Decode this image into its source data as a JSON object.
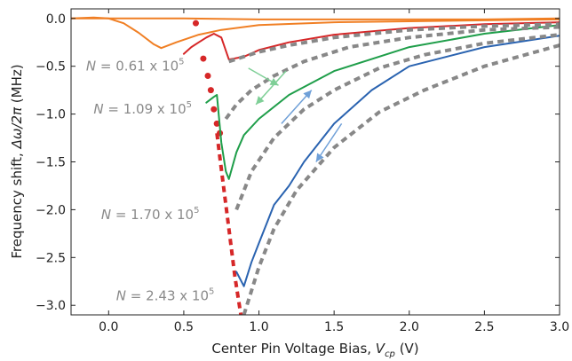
{
  "chart_data": {
    "type": "line",
    "title": "",
    "xlabel": "Center Pin Voltage Bias, V_cp (V)",
    "xlabel_parts": {
      "prefix": "Center Pin Voltage Bias, ",
      "symbol": "V",
      "subscript": "cp",
      "suffix": " (V)"
    },
    "ylabel": "Frequency shift, Δω/2π (MHz)",
    "ylabel_parts": {
      "prefix": "Frequency shift, ",
      "symbol": "Δω/2π",
      "suffix": " (MHz)"
    },
    "xlim": [
      -0.25,
      3.0
    ],
    "ylim": [
      -3.1,
      0.1
    ],
    "xticks": [
      0.0,
      0.5,
      1.0,
      1.5,
      2.0,
      2.5,
      3.0
    ],
    "xtick_labels": [
      "0.0",
      "0.5",
      "1.0",
      "1.5",
      "2.0",
      "2.5",
      "3.0"
    ],
    "yticks": [
      0.0,
      -0.5,
      -1.0,
      -1.5,
      -2.0,
      -2.5,
      -3.0
    ],
    "ytick_labels": [
      "0.0",
      "−0.5",
      "−1.0",
      "−1.5",
      "−2.0",
      "−2.5",
      "−3.0"
    ],
    "grid": false,
    "annotations": [
      {
        "symbol": "N",
        "text": " = 0.61 x 10",
        "exp": "5",
        "x": -0.15,
        "y": -0.5
      },
      {
        "symbol": "N",
        "text": " = 1.09 x 10",
        "exp": "5",
        "x": -0.1,
        "y": -0.95
      },
      {
        "symbol": "N",
        "text": " = 1.70 x 10",
        "exp": "5",
        "x": -0.05,
        "y": -2.05
      },
      {
        "symbol": "N",
        "text": " = 2.43 x 10",
        "exp": "5",
        "x": 0.05,
        "y": -2.9
      }
    ],
    "series": [
      {
        "color": "#f07f24",
        "style": "solid",
        "x": [
          -0.25,
          -0.1,
          0.0,
          0.1,
          0.2,
          0.3,
          0.35,
          0.45,
          0.6,
          0.75,
          1.0,
          1.5,
          2.0,
          2.5,
          3.0
        ],
        "y": [
          0.0,
          0.01,
          0.0,
          -0.05,
          -0.15,
          -0.27,
          -0.31,
          -0.25,
          -0.17,
          -0.12,
          -0.07,
          -0.04,
          -0.03,
          -0.02,
          -0.01
        ]
      },
      {
        "color": "#f07f24",
        "style": "solid",
        "x": [
          -0.25,
          0.0,
          0.5,
          1.0,
          1.5,
          2.0,
          2.5,
          3.0
        ],
        "y": [
          0.0,
          0.0,
          0.0,
          -0.01,
          -0.01,
          -0.01,
          -0.01,
          0.0
        ]
      },
      {
        "color": "#d62728",
        "style": "solid",
        "x": [
          0.5,
          0.55,
          0.6,
          0.65,
          0.7,
          0.75,
          0.8,
          0.9,
          1.0,
          1.2,
          1.5,
          2.0,
          2.5,
          3.0
        ],
        "y": [
          -0.37,
          -0.3,
          -0.25,
          -0.2,
          -0.16,
          -0.2,
          -0.43,
          -0.4,
          -0.33,
          -0.25,
          -0.17,
          -0.1,
          -0.06,
          -0.04
        ]
      },
      {
        "color": "#d62728",
        "style": "dots",
        "x": [
          0.58,
          0.63,
          0.66,
          0.68,
          0.7,
          0.72,
          0.74
        ],
        "y": [
          -0.05,
          -0.42,
          -0.6,
          -0.75,
          -0.95,
          -1.1,
          -1.2
        ]
      },
      {
        "color": "#d62728",
        "style": "dashed",
        "x": [
          0.72,
          0.74,
          0.76,
          0.78,
          0.8,
          0.82,
          0.84,
          0.86,
          0.88
        ],
        "y": [
          -1.2,
          -1.45,
          -1.7,
          -1.95,
          -2.2,
          -2.45,
          -2.7,
          -2.9,
          -3.1
        ]
      },
      {
        "color": "#1f9e4a",
        "style": "solid",
        "x": [
          0.65,
          0.7,
          0.72,
          0.75,
          0.78,
          0.8,
          0.85,
          0.9,
          1.0,
          1.2,
          1.5,
          2.0,
          2.5,
          3.0
        ],
        "y": [
          -0.88,
          -0.82,
          -0.8,
          -1.3,
          -1.6,
          -1.68,
          -1.4,
          -1.22,
          -1.05,
          -0.8,
          -0.55,
          -0.3,
          -0.16,
          -0.07
        ]
      },
      {
        "color": "#2a63b0",
        "style": "solid",
        "x": [
          0.85,
          0.9,
          0.95,
          1.0,
          1.05,
          1.1,
          1.2,
          1.3,
          1.5,
          1.75,
          2.0,
          2.5,
          3.0
        ],
        "y": [
          -2.65,
          -2.8,
          -2.55,
          -2.35,
          -2.15,
          -1.95,
          -1.75,
          -1.5,
          -1.1,
          -0.75,
          -0.5,
          -0.3,
          -0.18
        ]
      },
      {
        "color": "#888888",
        "style": "dashed",
        "x": [
          0.8,
          0.9,
          1.0,
          1.2,
          1.5,
          2.0,
          2.5,
          3.0
        ],
        "y": [
          -0.45,
          -0.4,
          -0.35,
          -0.28,
          -0.2,
          -0.12,
          -0.08,
          -0.06
        ]
      },
      {
        "color": "#888888",
        "style": "dashed",
        "x": [
          0.78,
          0.85,
          0.95,
          1.1,
          1.3,
          1.6,
          2.0,
          2.5,
          3.0
        ],
        "y": [
          -1.05,
          -0.9,
          -0.75,
          -0.6,
          -0.45,
          -0.3,
          -0.2,
          -0.12,
          -0.09
        ]
      },
      {
        "color": "#888888",
        "style": "dashed",
        "x": [
          0.85,
          0.95,
          1.1,
          1.3,
          1.5,
          1.8,
          2.1,
          2.5,
          3.0
        ],
        "y": [
          -2.0,
          -1.6,
          -1.25,
          -0.95,
          -0.75,
          -0.52,
          -0.38,
          -0.26,
          -0.17
        ]
      },
      {
        "color": "#888888",
        "style": "dashed",
        "x": [
          0.9,
          1.0,
          1.1,
          1.25,
          1.5,
          1.8,
          2.1,
          2.5,
          3.0
        ],
        "y": [
          -3.1,
          -2.6,
          -2.2,
          -1.8,
          -1.35,
          -0.98,
          -0.75,
          -0.5,
          -0.28
        ]
      }
    ],
    "arrows": [
      {
        "color": "#7fcf97",
        "x1": 0.93,
        "y1": -0.52,
        "x2": 1.13,
        "y2": -0.7
      },
      {
        "color": "#7fcf97",
        "x1": 1.18,
        "y1": -0.55,
        "x2": 0.98,
        "y2": -0.9
      },
      {
        "color": "#6fa0d8",
        "x1": 1.15,
        "y1": -1.1,
        "x2": 1.35,
        "y2": -0.75
      },
      {
        "color": "#6fa0d8",
        "x1": 1.55,
        "y1": -1.1,
        "x2": 1.38,
        "y2": -1.5
      }
    ]
  }
}
